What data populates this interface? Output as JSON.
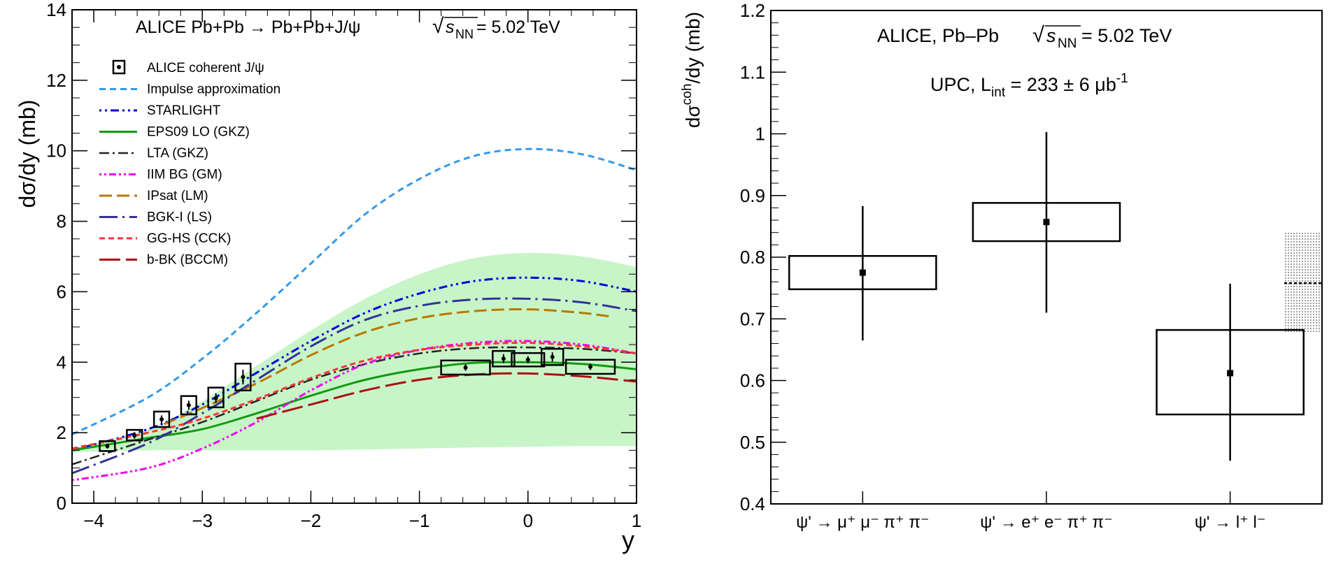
{
  "chart_data": [
    {
      "type": "line",
      "title": "ALICE Pb+Pb → Pb+Pb+J/ψ",
      "energy": {
        "prefix": "s",
        "subscript": "NN",
        "value": " = 5.02 TeV"
      },
      "xlabel": "y",
      "ylabel": "dσ/dy (mb)",
      "xlim": [
        -4.2,
        1.0
      ],
      "ylim": [
        0,
        14
      ],
      "xticks": [
        -4,
        -3,
        -2,
        -1,
        0,
        1
      ],
      "xtick_labels": [
        "−4",
        "−3",
        "−2",
        "−1",
        "0",
        "1"
      ],
      "yticks": [
        0,
        2,
        4,
        6,
        8,
        10,
        12,
        14
      ],
      "ytick_labels": [
        "0",
        "2",
        "4",
        "6",
        "8",
        "10",
        "12",
        "14"
      ],
      "legend_position": "top-left",
      "band": {
        "color": "#c8f5c8",
        "x": [
          -4.2,
          -3.5,
          -3.0,
          -2.5,
          -2.0,
          -1.5,
          -1.0,
          -0.5,
          0.0,
          0.5,
          1.0
        ],
        "lower": [
          1.45,
          1.5,
          1.5,
          1.5,
          1.5,
          1.52,
          1.55,
          1.58,
          1.6,
          1.62,
          1.62
        ],
        "upper": [
          1.55,
          2.1,
          2.9,
          3.9,
          4.9,
          5.8,
          6.5,
          6.95,
          7.1,
          7.0,
          6.7
        ]
      },
      "series": [
        {
          "name": "Impulse approximation",
          "color": "#3399ee",
          "dash": "9 6",
          "width": 3,
          "x": [
            -4.2,
            -3.5,
            -3.0,
            -2.5,
            -2.0,
            -1.5,
            -1.0,
            -0.5,
            0.0,
            0.5,
            1.0
          ],
          "y": [
            1.95,
            3.0,
            4.1,
            5.4,
            6.8,
            8.2,
            9.2,
            9.85,
            10.05,
            9.9,
            9.45
          ]
        },
        {
          "name": "STARLIGHT",
          "color": "#0000dd",
          "dash": "3 5 3 5 12 5",
          "width": 3,
          "x": [
            -4.2,
            -3.5,
            -3.0,
            -2.5,
            -2.0,
            -1.5,
            -1.0,
            -0.5,
            0.0,
            0.5,
            1.0
          ],
          "y": [
            1.5,
            2.1,
            2.8,
            3.7,
            4.6,
            5.4,
            5.95,
            6.3,
            6.4,
            6.3,
            6.0
          ]
        },
        {
          "name": "EPS09 LO (GKZ)",
          "color": "#119911",
          "dash": "none",
          "width": 3,
          "x": [
            -4.2,
            -3.5,
            -3.0,
            -2.5,
            -2.0,
            -1.5,
            -1.0,
            -0.5,
            0.0,
            0.5,
            1.0
          ],
          "y": [
            1.5,
            1.85,
            2.1,
            2.55,
            3.05,
            3.5,
            3.8,
            3.98,
            4.0,
            3.95,
            3.8
          ]
        },
        {
          "name": "LTA (GKZ)",
          "color": "#222222",
          "dash": "14 5 3 5",
          "width": 2.5,
          "x": [
            -4.2,
            -3.5,
            -3.0,
            -2.5,
            -2.0,
            -1.5,
            -1.0,
            -0.5,
            0.0,
            0.5,
            1.0
          ],
          "y": [
            1.1,
            1.8,
            2.3,
            2.9,
            3.5,
            3.95,
            4.25,
            4.4,
            4.42,
            4.38,
            4.25
          ]
        },
        {
          "name": "IIM BG (GM)",
          "color": "#ee00ee",
          "dash": "3 4 3 4 10 4",
          "width": 3,
          "x": [
            -4.2,
            -3.5,
            -3.0,
            -2.5,
            -2.0,
            -1.5,
            -1.0,
            -0.5,
            0.0,
            0.5,
            1.0
          ],
          "y": [
            0.65,
            1.0,
            1.55,
            2.3,
            3.2,
            3.95,
            4.35,
            4.55,
            4.6,
            4.5,
            4.25
          ]
        },
        {
          "name": "IPsat (LM)",
          "color": "#b87800",
          "dash": "18 7",
          "width": 3,
          "x": [
            -3.35,
            -3.0,
            -2.5,
            -2.0,
            -1.5,
            -1.0,
            -0.5,
            0.0,
            0.5,
            0.75
          ],
          "y": [
            2.25,
            2.7,
            3.4,
            4.2,
            4.85,
            5.25,
            5.45,
            5.5,
            5.4,
            5.3
          ]
        },
        {
          "name": "BGK-I (LS)",
          "color": "#333399",
          "dash": "26 7 3 7",
          "width": 3,
          "x": [
            -4.2,
            -3.5,
            -3.0,
            -2.5,
            -2.0,
            -1.5,
            -1.0,
            -0.5,
            0.0,
            0.5,
            1.0
          ],
          "y": [
            0.85,
            1.7,
            2.55,
            3.5,
            4.45,
            5.2,
            5.6,
            5.78,
            5.8,
            5.7,
            5.45
          ]
        },
        {
          "name": "GG-HS (CCK)",
          "color": "#ff3333",
          "dash": "8 5",
          "width": 3,
          "x": [
            -4.2,
            -3.5,
            -3.0,
            -2.5,
            -2.0,
            -1.5,
            -1.0,
            -0.5,
            0.0,
            0.5,
            1.0
          ],
          "y": [
            1.55,
            2.0,
            2.4,
            2.95,
            3.55,
            4.05,
            4.35,
            4.5,
            4.55,
            4.45,
            4.25
          ]
        },
        {
          "name": "b-BK (BCCM)",
          "color": "#aa1111",
          "dash": "30 8",
          "width": 3,
          "x": [
            -2.5,
            -2.0,
            -1.5,
            -1.0,
            -0.5,
            0.0,
            0.5,
            1.0
          ],
          "y": [
            2.4,
            2.8,
            3.2,
            3.5,
            3.65,
            3.68,
            3.6,
            3.45
          ]
        }
      ],
      "points": {
        "name": "ALICE coherent J/ψ",
        "x": [
          -3.875,
          -3.625,
          -3.375,
          -3.125,
          -2.875,
          -2.625,
          -0.575,
          -0.225,
          0.0,
          0.225,
          0.575
        ],
        "xerr": [
          0.07,
          0.07,
          0.07,
          0.07,
          0.07,
          0.07,
          0.225,
          0.1,
          0.15,
          0.1,
          0.225
        ],
        "y": [
          1.62,
          1.92,
          2.38,
          2.78,
          2.98,
          3.58,
          3.85,
          4.1,
          4.07,
          4.15,
          3.87
        ],
        "err": [
          0.07,
          0.09,
          0.11,
          0.13,
          0.14,
          0.21,
          0.09,
          0.13,
          0.1,
          0.13,
          0.09
        ],
        "syst_lo": [
          1.48,
          1.78,
          2.16,
          2.52,
          2.72,
          3.2,
          3.65,
          3.88,
          3.88,
          3.92,
          3.67
        ],
        "syst_hi": [
          1.76,
          2.08,
          2.6,
          3.04,
          3.28,
          3.96,
          4.05,
          4.32,
          4.26,
          4.38,
          4.07
        ]
      }
    },
    {
      "type": "scatter",
      "title": "ALICE, Pb–Pb",
      "energy": {
        "prefix": "s",
        "subscript": "NN",
        "value": " = 5.02 TeV"
      },
      "subtitle": {
        "prefix": "UPC, L",
        "subscript": "int",
        "middle": " = 233 ± 6 μb",
        "superscript": "-1"
      },
      "ylabel": {
        "prefix": "dσ",
        "superscript": "coh",
        "suffix": "/dy (mb)"
      },
      "ylim": [
        0.4,
        1.2
      ],
      "yticks": [
        0.4,
        0.5,
        0.6,
        0.7,
        0.8,
        0.9,
        1.0,
        1.1,
        1.2
      ],
      "ytick_labels": [
        "0.4",
        "0.5",
        "0.6",
        "0.7",
        "0.8",
        "0.9",
        "1",
        "1.1",
        "1.2"
      ],
      "categories": [
        "ψ' → μ⁺ μ⁻ π⁺ π⁻",
        "ψ' → e⁺ e⁻ π⁺ π⁻",
        "ψ' → l⁺ l⁻"
      ],
      "values": [
        0.775,
        0.857,
        0.612
      ],
      "err_lo": [
        0.665,
        0.71,
        0.47
      ],
      "err_hi": [
        0.883,
        1.003,
        0.757
      ],
      "syst_lo": [
        0.748,
        0.826,
        0.545
      ],
      "syst_hi": [
        0.802,
        0.888,
        0.682
      ],
      "syst_halfwidth": [
        0.4,
        0.4,
        0.4
      ],
      "combined": {
        "value": 0.758,
        "lo": 0.677,
        "hi": 0.84
      }
    }
  ]
}
